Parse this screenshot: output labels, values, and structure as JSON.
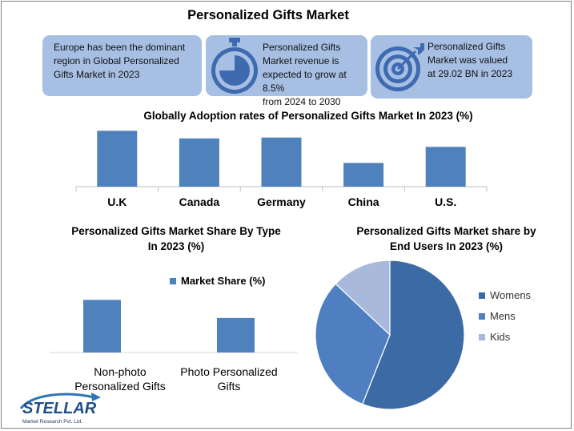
{
  "title": "Personalized Gifts Market",
  "cards": [
    {
      "text": "Europe has been the dominant region in Global Personalized Gifts Market in 2023",
      "lines": [
        "Europe has been the dominant",
        "region in Global Personalized",
        "Gifts Market in 2023"
      ],
      "icon": null
    },
    {
      "text": "Personalized Gifts Market revenue is expected to grow at 8.5% from 2024 to 2030",
      "lines": [
        "Personalized Gifts",
        "Market revenue is",
        "expected to grow at 8.5%",
        "from 2024 to 2030"
      ],
      "icon": "stopwatch-icon"
    },
    {
      "text": "Personalized Gifts Market was valued at 29.02 BN in 2023",
      "lines": [
        "Personalized Gifts",
        "Market was valued",
        "at 29.02 BN in 2023"
      ],
      "icon": "target-icon"
    }
  ],
  "colors": {
    "card": "#a6bfe3",
    "bar": "#4f81bd",
    "womens": "#3c6aa5",
    "mens": "#4f7fc0",
    "kids": "#a8b9db"
  },
  "chart_data": [
    {
      "type": "bar",
      "title": "Globally Adoption rates of Personalized Gifts Market In 2023 (%)",
      "categories": [
        "U.K",
        "Canada",
        "Germany",
        "China",
        "U.S."
      ],
      "values": [
        66,
        57,
        58,
        28,
        47
      ],
      "ylim": [
        0,
        70
      ],
      "grid": false,
      "xlabel": "",
      "ylabel": ""
    },
    {
      "type": "bar",
      "title_lines": [
        "Personalized Gifts Market Share By Type",
        "In 2023 (%)"
      ],
      "categories": [
        "Non-photo Personalized Gifts",
        "Photo Personalized Gifts"
      ],
      "category_lines": [
        [
          "Non-photo",
          "Personalized Gifts"
        ],
        [
          "Photo Personalized",
          "Gifts"
        ]
      ],
      "series": [
        {
          "name": "Market Share (%)",
          "values": [
            67,
            44
          ]
        }
      ],
      "legend": "top",
      "ylim": [
        0,
        100
      ],
      "grid": false
    },
    {
      "type": "pie",
      "title_lines": [
        "Personalized Gifts Market share by",
        "End Users In 2023 (%)"
      ],
      "labels": [
        "Womens",
        "Mens",
        "Kids"
      ],
      "values": [
        56,
        31,
        13
      ],
      "legend": "right"
    }
  ],
  "logo": {
    "name": "STELLAR",
    "tagline": "Market Research Pvt. Ltd."
  }
}
